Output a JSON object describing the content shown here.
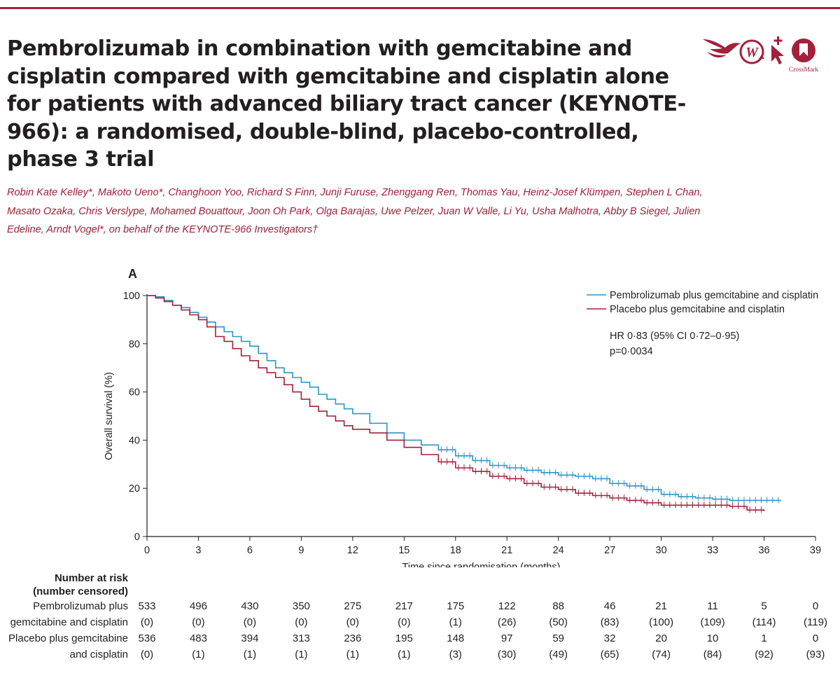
{
  "article": {
    "title": "Pembrolizumab in combination with gemcitabine and cisplatin compared with gemcitabine and cisplatin alone for patients with advanced biliary tract cancer (KEYNOTE-966): a randomised, double-blind, placebo-controlled, phase 3 trial",
    "authors": "Robin Kate Kelley*, Makoto Ueno*, Changhoon Yoo, Richard S Finn, Junji Furuse, Zhenggang Ren, Thomas Yau, Heinz-Josef Klümpen, Stephen L Chan, Masato Ozaka, Chris Verslype, Mohamed Bouattour, Joon Oh Park, Olga Barajas, Uwe Pelzer, Juan W Valle, Li Yu, Usha Malhotra, Abby B Siegel, Julien Edeline, Arndt Vogel*, on behalf of the KEYNOTE-966 Investigators†",
    "crossmark_label": "CrossMark",
    "brand_color": "#a3203a"
  },
  "chart_data": {
    "type": "line",
    "panel": "A",
    "xlabel": "Time since randomisation (months)",
    "ylabel": "Overall survival (%)",
    "xticks": [
      0,
      3,
      6,
      9,
      12,
      15,
      18,
      21,
      24,
      27,
      30,
      33,
      36,
      39
    ],
    "yticks": [
      0,
      20,
      40,
      60,
      80,
      100
    ],
    "xlim": [
      0,
      39
    ],
    "ylim": [
      0,
      100
    ],
    "legend_position": "top-right",
    "annotations": [
      "HR 0·83 (95% CI 0·72–0·95)",
      "p=0·0034"
    ],
    "series": [
      {
        "name": "Pembrolizumab plus gemcitabine and cisplatin",
        "color": "#2e94c7",
        "x": [
          0,
          0.5,
          1,
          1.5,
          2,
          2.5,
          3,
          3.5,
          4,
          4.5,
          5,
          5.5,
          6,
          6.5,
          7,
          7.5,
          8,
          8.5,
          9,
          9.5,
          10,
          10.5,
          11,
          11.5,
          12,
          13,
          14,
          15,
          16,
          17,
          18,
          19,
          20,
          21,
          22,
          23,
          24,
          25,
          26,
          27,
          28,
          29,
          30,
          31,
          32,
          33,
          34,
          35,
          36,
          37
        ],
        "y": [
          100,
          99.5,
          98,
          96,
          95,
          93,
          91,
          89,
          87,
          85,
          83,
          81,
          79,
          76,
          73,
          70,
          68,
          66,
          64,
          62,
          59,
          57,
          55,
          53,
          51,
          47,
          43,
          40,
          38,
          36,
          33.5,
          31.5,
          29.5,
          28.5,
          27.5,
          26.5,
          25.5,
          25,
          24,
          22,
          21,
          19.5,
          17.5,
          16.5,
          16,
          15.5,
          15,
          15,
          15,
          15
        ]
      },
      {
        "name": "Placebo plus gemcitabine and cisplatin",
        "color": "#a3203a",
        "x": [
          0,
          0.5,
          1,
          1.5,
          2,
          2.5,
          3,
          3.5,
          4,
          4.5,
          5,
          5.5,
          6,
          6.5,
          7,
          7.5,
          8,
          8.5,
          9,
          9.5,
          10,
          10.5,
          11,
          11.5,
          12,
          13,
          14,
          15,
          16,
          17,
          18,
          19,
          20,
          21,
          22,
          23,
          24,
          25,
          26,
          27,
          28,
          29,
          30,
          31,
          32,
          33,
          34,
          35,
          36
        ],
        "y": [
          100,
          99,
          97.5,
          96,
          94,
          92,
          90,
          87,
          83,
          81,
          78,
          75,
          73,
          70,
          68,
          66,
          63,
          60,
          57,
          54,
          52,
          50,
          48,
          46,
          44.5,
          43,
          40,
          37,
          34,
          31,
          28.5,
          27,
          25,
          24,
          22,
          20.5,
          19.5,
          18,
          17,
          16,
          15,
          14,
          13,
          13,
          13,
          13,
          12.5,
          11,
          10.5
        ]
      }
    ]
  },
  "risk_table": {
    "header_line1": "Number at risk",
    "header_line2": "(number censored)",
    "rows": [
      {
        "label_line1": "Pembrolizumab plus",
        "label_line2": "gemcitabine and cisplatin",
        "at_risk": [
          "533",
          "496",
          "430",
          "350",
          "275",
          "217",
          "175",
          "122",
          "88",
          "46",
          "21",
          "11",
          "5",
          "0"
        ],
        "censored": [
          "(0)",
          "(0)",
          "(0)",
          "(0)",
          "(0)",
          "(0)",
          "(1)",
          "(26)",
          "(50)",
          "(83)",
          "(100)",
          "(109)",
          "(114)",
          "(119)"
        ]
      },
      {
        "label_line1": "Placebo plus gemcitabine",
        "label_line2": "and cisplatin",
        "at_risk": [
          "536",
          "483",
          "394",
          "313",
          "236",
          "195",
          "148",
          "97",
          "59",
          "32",
          "20",
          "10",
          "1",
          "0"
        ],
        "censored": [
          "(0)",
          "(1)",
          "(1)",
          "(1)",
          "(1)",
          "(1)",
          "(3)",
          "(30)",
          "(49)",
          "(65)",
          "(74)",
          "(84)",
          "(92)",
          "(93)"
        ]
      }
    ]
  }
}
